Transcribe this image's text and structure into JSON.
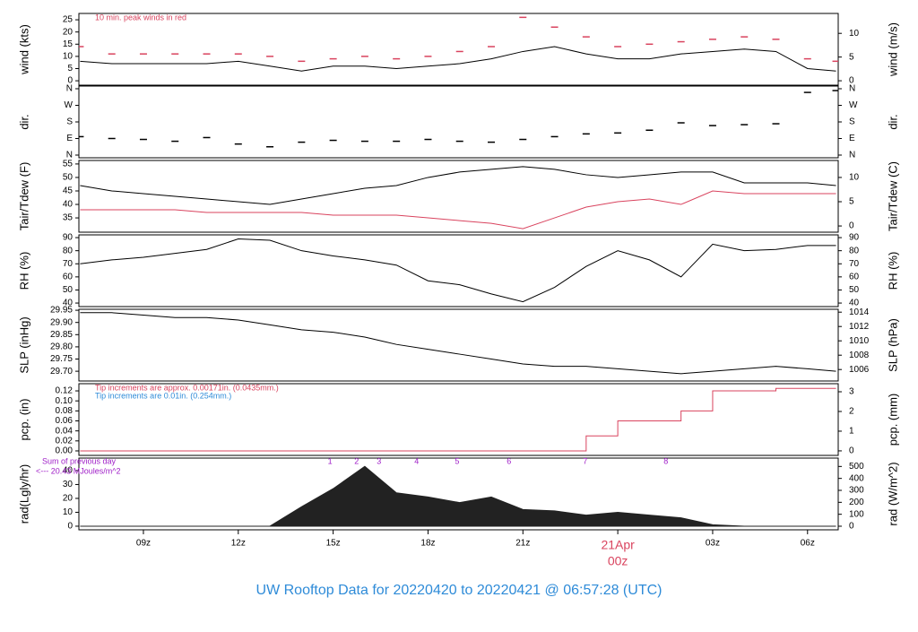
{
  "chart_data": {
    "type": "multi-panel",
    "title": "UW Rooftop Data for 20220420  to  20220421 @ 06:57:28  (UTC)",
    "x": [
      7,
      8,
      9,
      10,
      11,
      12,
      13,
      14,
      15,
      16,
      17,
      18,
      19,
      20,
      21,
      22,
      23,
      24,
      25,
      26,
      27,
      28,
      29,
      30,
      30.9
    ],
    "xlim": [
      6.96,
      30.97
    ],
    "xticks": [
      {
        "value": 9,
        "label": "09z"
      },
      {
        "value": 12,
        "label": "12z"
      },
      {
        "value": 15,
        "label": "15z"
      },
      {
        "value": 18,
        "label": "18z"
      },
      {
        "value": 21,
        "label": "21z"
      },
      {
        "value": 24,
        "label": "00z",
        "date": "21Apr",
        "color": "#d9435e"
      },
      {
        "value": 27,
        "label": "03z"
      },
      {
        "value": 30,
        "label": "06z"
      }
    ],
    "panels": [
      {
        "ylabel": "wind (kts)",
        "ylim": [
          -1.8,
          27.6
        ],
        "yticks": [
          0,
          5,
          10,
          15,
          20,
          25
        ],
        "y2label": "wind (m/s)",
        "y2lim": [
          -0.93,
          14.2
        ],
        "y2ticks": [
          0,
          5,
          10
        ],
        "annotations": [
          {
            "text": "10 min. peak winds in red",
            "color": "#d9435e"
          }
        ],
        "series": [
          {
            "style": "dash",
            "color": "#d9435e",
            "values": [
              14,
              11,
              11,
              11,
              11,
              11,
              10,
              8,
              9,
              10,
              9,
              10,
              12,
              14,
              26,
              22,
              18,
              14,
              15,
              16,
              17,
              18,
              17,
              9,
              8
            ]
          },
          {
            "style": "line",
            "color": "#000000",
            "values": [
              8,
              7,
              7,
              7,
              7,
              8,
              6,
              4,
              6,
              6,
              5,
              6,
              7,
              9,
              12,
              14,
              11,
              9,
              9,
              11,
              12,
              13,
              12,
              5,
              4
            ]
          }
        ]
      },
      {
        "ylabel": "dir.",
        "ylim": [
          -14.6,
          374.5
        ],
        "yticks": [
          {
            "value": 0,
            "label": "N"
          },
          {
            "value": 90,
            "label": "E"
          },
          {
            "value": 180,
            "label": "S"
          },
          {
            "value": 270,
            "label": "W"
          },
          {
            "value": 360,
            "label": "N"
          }
        ],
        "y2label": "dir.",
        "y2lim": [
          -14.6,
          374.5
        ],
        "y2ticks": [
          {
            "value": 0,
            "label": "N"
          },
          {
            "value": 90,
            "label": "E"
          },
          {
            "value": 180,
            "label": "S"
          },
          {
            "value": 270,
            "label": "W"
          },
          {
            "value": 360,
            "label": "N"
          }
        ],
        "series": [
          {
            "style": "dash",
            "color": "#000000",
            "values": [
              100,
              90,
              85,
              75,
              95,
              60,
              45,
              70,
              80,
              75,
              75,
              85,
              75,
              70,
              85,
              100,
              115,
              120,
              135,
              175,
              160,
              165,
              170,
              340,
              350
            ]
          }
        ]
      },
      {
        "ylabel": "Tair/Tdew (F)",
        "ylim": [
          29.7,
          56.3
        ],
        "yticks": [
          35,
          40,
          45,
          50,
          55
        ],
        "y2label": "Tair/Tdew (C)",
        "y2lim": [
          -1.28,
          13.5
        ],
        "y2ticks": [
          0,
          5,
          10
        ],
        "series": [
          {
            "style": "line",
            "color": "#000000",
            "values": [
              47,
              45,
              44,
              43,
              42,
              41,
              40,
              42,
              44,
              46,
              47,
              50,
              52,
              53,
              54,
              53,
              51,
              50,
              51,
              52,
              52,
              48,
              48,
              48,
              47
            ]
          },
          {
            "style": "line",
            "color": "#d9435e",
            "values": [
              38,
              38,
              38,
              38,
              37,
              37,
              37,
              37,
              36,
              36,
              36,
              35,
              34,
              33,
              31,
              35,
              39,
              41,
              42,
              40,
              45,
              44,
              44,
              44,
              44
            ]
          }
        ]
      },
      {
        "ylabel": "RH (%)",
        "ylim": [
          37.3,
          92.1
        ],
        "yticks": [
          40,
          50,
          60,
          70,
          80,
          90
        ],
        "y2label": "RH (%)",
        "y2lim": [
          37.3,
          92.1
        ],
        "y2ticks": [
          40,
          50,
          60,
          70,
          80,
          90
        ],
        "series": [
          {
            "style": "line",
            "color": "#000000",
            "values": [
              70,
              73,
              75,
              78,
              81,
              89,
              88,
              80,
              76,
              73,
              69,
              57,
              54,
              47,
              41,
              52,
              68,
              80,
              73,
              60,
              85,
              80,
              81,
              84,
              84
            ]
          }
        ]
      },
      {
        "ylabel": "SLP (inHg)",
        "ylim": [
          29.66,
          29.954
        ],
        "yticks": [
          {
            "value": 29.7,
            "label": "29.70"
          },
          29.75,
          {
            "value": 29.8,
            "label": "29.80"
          },
          29.85,
          {
            "value": 29.9,
            "label": "29.90"
          },
          29.95
        ],
        "y2label": "SLP (hPa)",
        "y2lim": [
          1004.4,
          1014.4
        ],
        "y2ticks": [
          1006,
          1008,
          1010,
          1012,
          1014
        ],
        "series": [
          {
            "style": "line",
            "color": "#000000",
            "values": [
              29.94,
              29.94,
              29.93,
              29.92,
              29.92,
              29.91,
              29.89,
              29.87,
              29.86,
              29.84,
              29.81,
              29.79,
              29.77,
              29.75,
              29.73,
              29.72,
              29.72,
              29.71,
              29.7,
              29.69,
              29.7,
              29.71,
              29.72,
              29.71,
              29.7
            ]
          }
        ]
      },
      {
        "ylabel": "pcp. (in)",
        "ylim": [
          -0.009,
          0.1344
        ],
        "yticks": [
          {
            "value": 0,
            "label": "0.00"
          },
          0.02,
          0.04,
          0.06,
          0.08,
          {
            "value": 0.1,
            "label": "0.10"
          },
          0.12
        ],
        "y2label": "pcp. (mm)",
        "y2lim": [
          -0.23,
          3.41
        ],
        "y2ticks": [
          0,
          1,
          2,
          3
        ],
        "annotations": [
          {
            "text": "Tip increments are approx. 0.00171in. (0.0435mm.)",
            "color": "#d9435e"
          },
          {
            "text": "Tip increments are 0.01in. (0.254mm.)",
            "color": "#2e8bd8"
          }
        ],
        "series": [
          {
            "style": "step",
            "color": "#d9435e",
            "values": [
              0,
              0,
              0,
              0,
              0,
              0,
              0,
              0,
              0,
              0,
              0,
              0,
              0,
              0,
              0,
              0,
              0.03,
              0.06,
              0.06,
              0.08,
              0.12,
              0.12,
              0.125,
              0.125,
              0.125
            ]
          }
        ]
      },
      {
        "ylabel": "rad(Lgly/hr)",
        "ylim": [
          -2.6,
          49
        ],
        "yticks": [
          0,
          10,
          20,
          30,
          40
        ],
        "y2label": "rad (W/m^2)",
        "y2lim": [
          -30,
          570
        ],
        "y2ticks": [
          0,
          100,
          200,
          300,
          400,
          500
        ],
        "day_sum": [
          "Sum of previous day",
          "<--- 20.43 MJoules/m^2"
        ],
        "hour_markers": {
          "x": [
            14.9,
            15.74,
            16.45,
            17.64,
            18.92,
            20.56,
            22.97,
            25.52
          ],
          "labels": [
            1,
            2,
            3,
            4,
            5,
            6,
            7,
            8
          ],
          "color": "#a020c8"
        },
        "series": [
          {
            "style": "area",
            "color": "#222222",
            "values": [
              0,
              0,
              0,
              0,
              0,
              0,
              0,
              14,
              27,
              43,
              24,
              21,
              17,
              21,
              12,
              11,
              8,
              10,
              8,
              6,
              1,
              0,
              0,
              0,
              0
            ]
          }
        ]
      }
    ]
  }
}
